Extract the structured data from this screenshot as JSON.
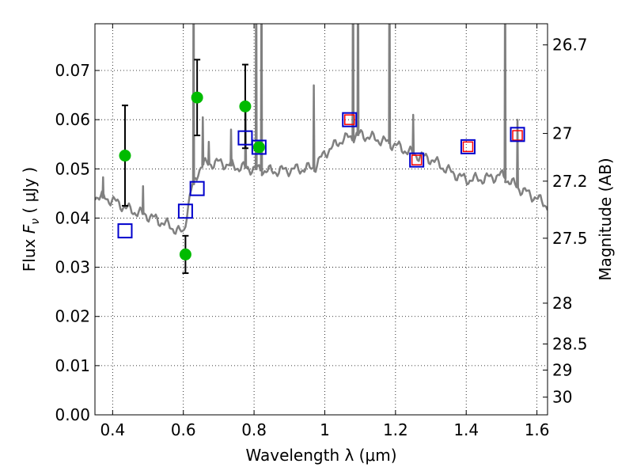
{
  "chart_data": {
    "type": "scatter",
    "xlabel": "Wavelength  λ (μm)",
    "ylabel_prefix": "Flux ",
    "ylabel_symbol": "F",
    "ylabel_sub": "ν",
    "ylabel_suffix": " ( μJy )",
    "y2label": "Magnitude (AB)",
    "xlim": [
      0.35,
      1.63
    ],
    "ylim": [
      0.0,
      0.0795
    ],
    "grid": true,
    "xticks": [
      {
        "v": 0.4,
        "label": "0.4"
      },
      {
        "v": 0.6,
        "label": "0.6"
      },
      {
        "v": 0.8,
        "label": "0.8"
      },
      {
        "v": 1.0,
        "label": "1"
      },
      {
        "v": 1.2,
        "label": "1.2"
      },
      {
        "v": 1.4,
        "label": "1.4"
      },
      {
        "v": 1.6,
        "label": "1.6"
      }
    ],
    "yticks": [
      {
        "v": 0.0,
        "label": "0.00"
      },
      {
        "v": 0.01,
        "label": "0.01"
      },
      {
        "v": 0.02,
        "label": "0.02"
      },
      {
        "v": 0.03,
        "label": "0.03"
      },
      {
        "v": 0.04,
        "label": "0.04"
      },
      {
        "v": 0.05,
        "label": "0.05"
      },
      {
        "v": 0.06,
        "label": "0.06"
      },
      {
        "v": 0.07,
        "label": "0.07"
      }
    ],
    "mag_ticks": [
      {
        "v": 0.0752,
        "label": "26.7"
      },
      {
        "v": 0.0572,
        "label": "27"
      },
      {
        "v": 0.0475,
        "label": "27.2"
      },
      {
        "v": 0.0359,
        "label": "27.5"
      },
      {
        "v": 0.0227,
        "label": "28"
      },
      {
        "v": 0.0144,
        "label": "28.5"
      },
      {
        "v": 0.0091,
        "label": "29"
      },
      {
        "v": 0.0036,
        "label": "30"
      }
    ],
    "colors": {
      "spectrum": "#808080",
      "observed": "#00bb00",
      "errorbar": "#000000",
      "model_blue": "#0000cc",
      "model_red": "#ff0000",
      "grid": "#000000"
    },
    "observed_points": [
      {
        "x": 0.435,
        "y": 0.0527,
        "err": 0.0102
      },
      {
        "x": 0.606,
        "y": 0.0326,
        "err": 0.0038
      },
      {
        "x": 0.639,
        "y": 0.0645,
        "err": 0.0077
      },
      {
        "x": 0.775,
        "y": 0.0627,
        "err": 0.0085
      },
      {
        "x": 0.814,
        "y": 0.0544,
        "err": 0
      }
    ],
    "model_blue_points": [
      {
        "x": 0.435,
        "y": 0.0374
      },
      {
        "x": 0.606,
        "y": 0.0414
      },
      {
        "x": 0.639,
        "y": 0.046
      },
      {
        "x": 0.775,
        "y": 0.0563
      },
      {
        "x": 0.814,
        "y": 0.0544
      },
      {
        "x": 1.07,
        "y": 0.06
      },
      {
        "x": 1.26,
        "y": 0.0518
      },
      {
        "x": 1.405,
        "y": 0.0545
      },
      {
        "x": 1.545,
        "y": 0.057
      }
    ],
    "model_red_points": [
      {
        "x": 1.07,
        "y": 0.06
      },
      {
        "x": 1.26,
        "y": 0.0518
      },
      {
        "x": 1.405,
        "y": 0.0545
      },
      {
        "x": 1.545,
        "y": 0.0568
      }
    ],
    "spectrum_continuum": [
      [
        0.35,
        0.0446
      ],
      [
        0.4,
        0.0436
      ],
      [
        0.45,
        0.0416
      ],
      [
        0.5,
        0.0405
      ],
      [
        0.55,
        0.0388
      ],
      [
        0.6,
        0.0368
      ],
      [
        0.62,
        0.0452
      ],
      [
        0.65,
        0.0508
      ],
      [
        0.7,
        0.0513
      ],
      [
        0.75,
        0.0504
      ],
      [
        0.8,
        0.05
      ],
      [
        0.85,
        0.0495
      ],
      [
        0.9,
        0.0498
      ],
      [
        0.97,
        0.0502
      ],
      [
        1.0,
        0.0532
      ],
      [
        1.05,
        0.056
      ],
      [
        1.1,
        0.057
      ],
      [
        1.15,
        0.056
      ],
      [
        1.2,
        0.0548
      ],
      [
        1.25,
        0.053
      ],
      [
        1.3,
        0.052
      ],
      [
        1.35,
        0.0496
      ],
      [
        1.4,
        0.0478
      ],
      [
        1.45,
        0.048
      ],
      [
        1.5,
        0.0487
      ],
      [
        1.55,
        0.046
      ],
      [
        1.6,
        0.044
      ],
      [
        1.63,
        0.0425
      ]
    ],
    "spectrum_lines": [
      {
        "x": 0.373,
        "peak": 0.0483
      },
      {
        "x": 0.486,
        "peak": 0.0465
      },
      {
        "x": 0.629,
        "peak": 0.1
      },
      {
        "x": 0.655,
        "peak": 0.0605
      },
      {
        "x": 0.672,
        "peak": 0.0555
      },
      {
        "x": 0.735,
        "peak": 0.058
      },
      {
        "x": 0.776,
        "peak": 0.062
      },
      {
        "x": 0.806,
        "peak": 0.1
      },
      {
        "x": 0.821,
        "peak": 0.1
      },
      {
        "x": 0.969,
        "peak": 0.067
      },
      {
        "x": 1.08,
        "peak": 0.1
      },
      {
        "x": 1.094,
        "peak": 0.1
      },
      {
        "x": 1.183,
        "peak": 0.1
      },
      {
        "x": 1.25,
        "peak": 0.061
      },
      {
        "x": 1.51,
        "peak": 0.1
      },
      {
        "x": 1.545,
        "peak": 0.06
      }
    ]
  }
}
